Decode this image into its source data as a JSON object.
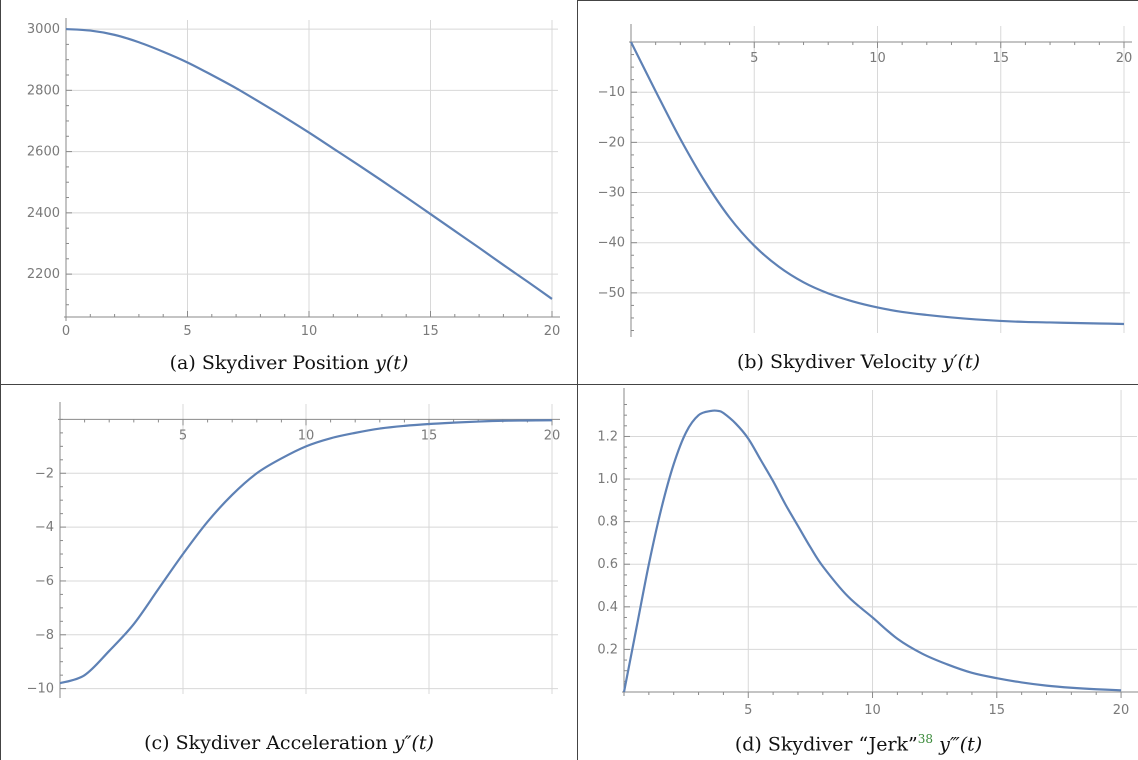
{
  "captions": {
    "a": {
      "prefix": "(a) Skydiver Position ",
      "math": "y(t)"
    },
    "b": {
      "prefix": "(b) Skydiver Velocity ",
      "math": "y′(t)"
    },
    "c": {
      "prefix": "(c) Skydiver Acceleration ",
      "math": "y″(t)"
    },
    "d": {
      "prefix": "(d) Skydiver “Jerk”",
      "sup": "38",
      "math": " y‴(t)"
    }
  },
  "colors": {
    "line": "#5e81b5",
    "grid": "#d8d8d8",
    "axis": "#8a8a8a",
    "border": "#444444"
  },
  "chart_data": [
    {
      "id": "a",
      "type": "line",
      "title": "",
      "xlim": [
        0,
        20
      ],
      "ylim": [
        2060,
        3010
      ],
      "xticks": [
        0,
        5,
        10,
        15,
        20
      ],
      "yticks": [
        2200,
        2400,
        2600,
        2800,
        3000
      ],
      "axis_origin": "frame",
      "grid": true,
      "series": [
        {
          "x": [
            0,
            1,
            2,
            3,
            4,
            5,
            6,
            7,
            8,
            9,
            10,
            11,
            12,
            13,
            14,
            15,
            16,
            17,
            18,
            19,
            20
          ],
          "y": [
            3000,
            2995,
            2981,
            2957,
            2926,
            2891,
            2850,
            2807,
            2760,
            2712,
            2662,
            2610,
            2558,
            2505,
            2451,
            2396,
            2341,
            2286,
            2230,
            2175,
            2119
          ]
        }
      ]
    },
    {
      "id": "b",
      "type": "line",
      "title": "",
      "xlim": [
        0,
        20
      ],
      "ylim": [
        -58,
        2
      ],
      "xticks": [
        5,
        10,
        15,
        20
      ],
      "yticks": [
        -10,
        -20,
        -30,
        -40,
        -50
      ],
      "axis_origin": "zero",
      "grid": true,
      "series": [
        {
          "x": [
            0,
            1,
            2,
            3,
            4,
            5,
            6,
            7,
            8,
            9,
            10,
            11,
            12,
            13,
            14,
            15,
            16,
            17,
            18,
            19,
            20
          ],
          "y": [
            0,
            -9.8,
            -19.3,
            -27.8,
            -35.0,
            -40.6,
            -44.8,
            -47.9,
            -50.1,
            -51.7,
            -52.9,
            -53.8,
            -54.4,
            -54.9,
            -55.3,
            -55.6,
            -55.8,
            -55.9,
            -56.0,
            -56.1,
            -56.2
          ]
        }
      ]
    },
    {
      "id": "c",
      "type": "line",
      "title": "",
      "xlim": [
        0,
        20
      ],
      "ylim": [
        -10.2,
        0.35
      ],
      "xticks": [
        5,
        10,
        15,
        20
      ],
      "yticks": [
        -2,
        -4,
        -6,
        -8,
        -10
      ],
      "axis_origin": "zero",
      "grid": true,
      "series": [
        {
          "x": [
            0,
            1,
            2,
            3,
            4,
            5,
            6,
            7,
            8,
            9,
            10,
            11,
            12,
            13,
            14,
            15,
            16,
            17,
            18,
            19,
            20
          ],
          "y": [
            -9.8,
            -9.5,
            -8.6,
            -7.6,
            -6.3,
            -5.0,
            -3.8,
            -2.8,
            -2.0,
            -1.45,
            -1.0,
            -0.7,
            -0.5,
            -0.34,
            -0.24,
            -0.17,
            -0.12,
            -0.08,
            -0.05,
            -0.04,
            -0.03
          ]
        }
      ]
    },
    {
      "id": "d",
      "type": "line",
      "title": "",
      "xlim": [
        0,
        20.4
      ],
      "ylim": [
        0,
        1.39
      ],
      "xticks": [
        5,
        10,
        15,
        20
      ],
      "yticks": [
        0.2,
        0.4,
        0.6,
        0.8,
        1.0,
        1.2
      ],
      "ytick_labels": [
        "0.2",
        "0.4",
        "0.6",
        "0.8",
        "1.0",
        "1.2"
      ],
      "axis_origin": "zero",
      "grid": true,
      "series": [
        {
          "x": [
            0,
            0.5,
            1,
            1.5,
            2,
            2.5,
            3,
            3.5,
            3.8,
            4,
            4.5,
            5,
            5.5,
            6,
            6.5,
            7,
            7.5,
            8,
            9,
            10,
            11,
            12,
            13,
            14,
            15,
            16,
            17,
            18,
            19,
            20
          ],
          "y": [
            0,
            0.3,
            0.6,
            0.86,
            1.07,
            1.22,
            1.3,
            1.32,
            1.32,
            1.31,
            1.26,
            1.19,
            1.09,
            0.99,
            0.88,
            0.78,
            0.68,
            0.59,
            0.45,
            0.35,
            0.25,
            0.18,
            0.13,
            0.09,
            0.065,
            0.045,
            0.03,
            0.02,
            0.013,
            0.008
          ]
        }
      ]
    }
  ]
}
